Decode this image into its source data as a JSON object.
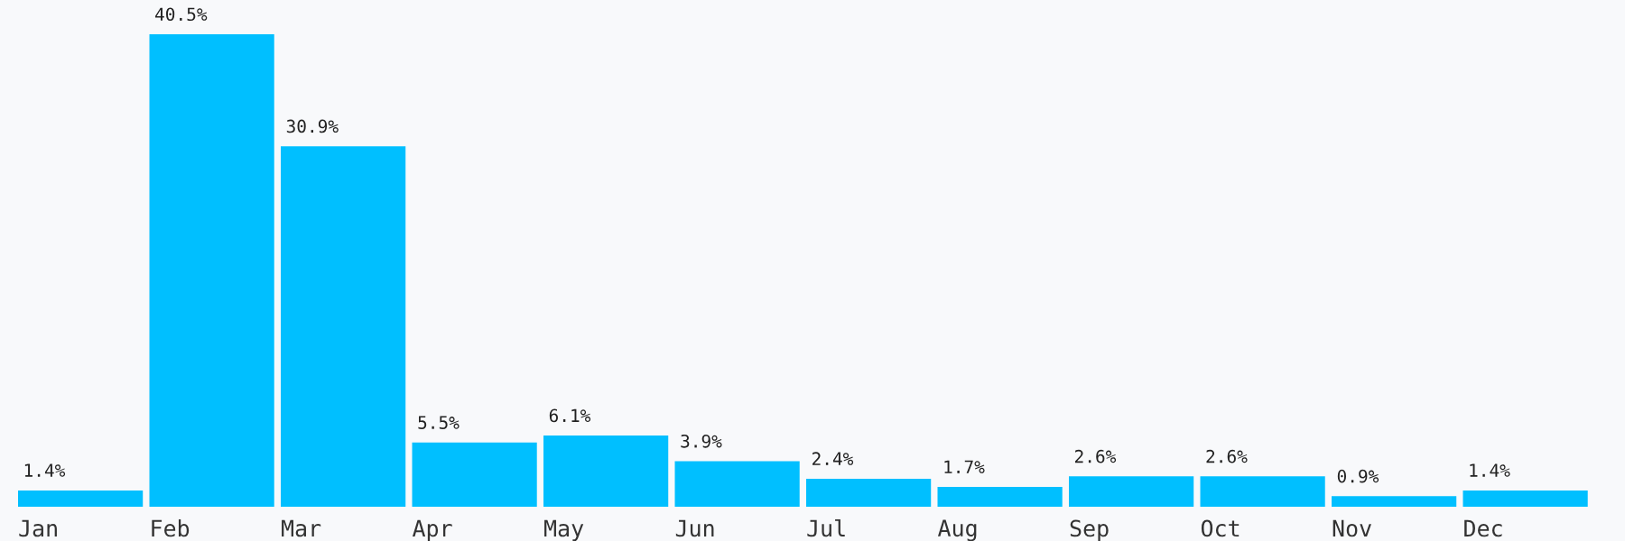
{
  "chart_data": {
    "type": "bar",
    "categories": [
      "Jan",
      "Feb",
      "Mar",
      "Apr",
      "May",
      "Jun",
      "Jul",
      "Aug",
      "Sep",
      "Oct",
      "Nov",
      "Dec"
    ],
    "values": [
      1.4,
      40.5,
      30.9,
      5.5,
      6.1,
      3.9,
      2.4,
      1.7,
      2.6,
      2.6,
      0.9,
      1.4
    ],
    "value_labels": [
      "1.4%",
      "40.5%",
      "30.9%",
      "5.5%",
      "6.1%",
      "3.9%",
      "2.4%",
      "1.7%",
      "2.6%",
      "2.6%",
      "0.9%",
      "1.4%"
    ],
    "color": "#00bfff",
    "grid": false,
    "legend": false
  }
}
